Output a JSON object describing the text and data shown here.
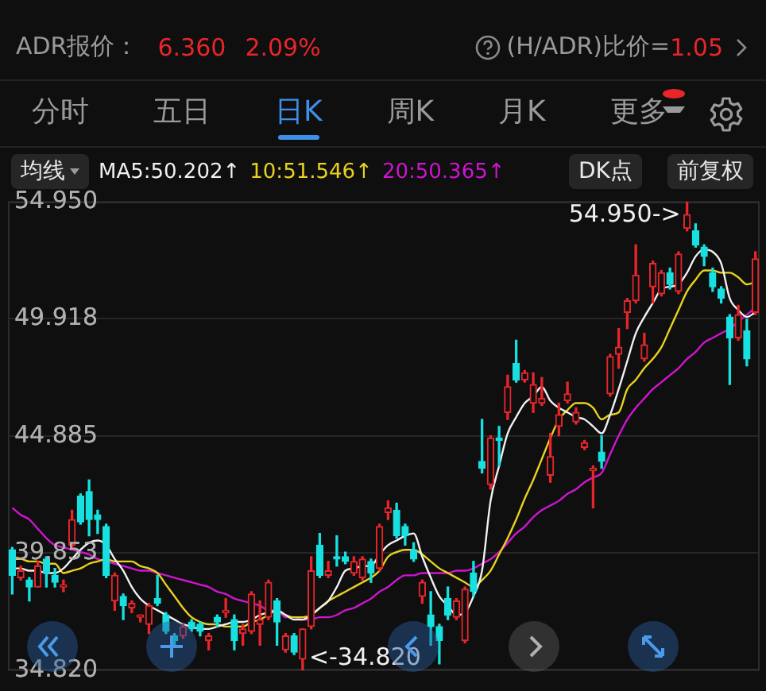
{
  "chart_data": {
    "type": "candlestick",
    "categories": [
      null,
      null,
      null,
      null,
      null,
      null,
      null,
      null,
      null,
      null,
      null,
      null,
      null,
      null,
      null,
      null,
      null,
      null,
      null,
      null,
      null,
      null,
      null,
      null,
      null,
      null,
      null,
      null,
      null,
      null,
      null,
      null,
      null,
      null,
      null,
      null,
      null,
      null,
      null,
      null,
      null,
      null,
      null,
      null,
      null,
      null,
      null,
      null,
      null,
      null,
      null,
      null,
      null,
      null,
      null,
      null,
      null,
      null,
      null,
      null,
      null,
      null,
      null,
      null,
      null,
      null,
      null,
      null,
      null,
      null,
      null,
      null,
      null,
      null,
      null,
      null,
      null,
      null,
      null,
      null,
      null,
      null,
      null,
      null,
      null,
      null,
      null,
      null
    ],
    "ohlc": [
      [
        40.0,
        40.1,
        38.1,
        38.9
      ],
      [
        38.8,
        39.3,
        38.7,
        39.1
      ],
      [
        38.7,
        38.8,
        37.8,
        38.4
      ],
      [
        38.4,
        39.5,
        38.4,
        39.3
      ],
      [
        39.6,
        39.7,
        38.4,
        39.0
      ],
      [
        38.9,
        39.2,
        38.4,
        38.6
      ],
      [
        38.4,
        38.7,
        38.2,
        38.5
      ],
      [
        40.2,
        41.7,
        40.0,
        41.3
      ],
      [
        42.3,
        42.4,
        41.1,
        41.2
      ],
      [
        42.5,
        43.0,
        40.6,
        41.3
      ],
      [
        41.5,
        41.7,
        40.7,
        41.3
      ],
      [
        41.0,
        41.1,
        38.8,
        38.9
      ],
      [
        37.8,
        39.0,
        37.4,
        38.9
      ],
      [
        38.0,
        38.1,
        37.0,
        37.6
      ],
      [
        37.5,
        37.8,
        37.3,
        37.7
      ],
      [
        37.1,
        37.2,
        36.9,
        37.2
      ],
      [
        36.8,
        37.7,
        36.4,
        37.6
      ],
      [
        37.9,
        38.9,
        37.6,
        37.7
      ],
      [
        37.2,
        37.3,
        36.4,
        36.5
      ],
      [
        36.3,
        36.4,
        35.9,
        36.1
      ],
      [
        36.3,
        36.8,
        36.2,
        36.7
      ],
      [
        36.9,
        37.0,
        36.5,
        36.6
      ],
      [
        36.8,
        36.9,
        36.3,
        36.5
      ],
      [
        36.1,
        36.4,
        35.7,
        36.3
      ],
      [
        37.1,
        37.2,
        36.7,
        36.9
      ],
      [
        37.3,
        37.9,
        37.1,
        37.4
      ],
      [
        37.0,
        37.2,
        35.7,
        36.1
      ],
      [
        36.4,
        36.8,
        35.9,
        36.6
      ],
      [
        36.5,
        38.2,
        36.4,
        38.1
      ],
      [
        36.8,
        37.8,
        35.9,
        37.0
      ],
      [
        37.1,
        38.7,
        37.0,
        38.6
      ],
      [
        37.8,
        37.9,
        35.9,
        36.9
      ],
      [
        35.7,
        36.4,
        35.6,
        36.3
      ],
      [
        36.3,
        36.4,
        35.5,
        35.6
      ],
      [
        35.3,
        36.6,
        34.82,
        36.6
      ],
      [
        36.7,
        39.7,
        36.6,
        39.1
      ],
      [
        40.2,
        40.7,
        38.8,
        38.9
      ],
      [
        38.9,
        39.5,
        38.8,
        39.1
      ],
      [
        39.7,
        40.6,
        39.3,
        39.6
      ],
      [
        39.7,
        39.9,
        39.4,
        39.5
      ],
      [
        39.0,
        39.7,
        38.9,
        39.5
      ],
      [
        38.8,
        39.7,
        38.7,
        39.6
      ],
      [
        39.5,
        39.6,
        38.6,
        39.0
      ],
      [
        39.2,
        41.1,
        39.1,
        41.0
      ],
      [
        41.6,
        42.1,
        41.3,
        41.8
      ],
      [
        41.7,
        42.0,
        40.5,
        40.6
      ],
      [
        41.0,
        41.1,
        40.2,
        40.6
      ],
      [
        40.0,
        40.3,
        39.5,
        39.6
      ],
      [
        38.0,
        38.7,
        37.7,
        38.6
      ],
      [
        37.2,
        38.2,
        35.9,
        36.7
      ],
      [
        36.7,
        36.8,
        35.1,
        36.1
      ],
      [
        37.9,
        38.4,
        37.0,
        37.2
      ],
      [
        37.1,
        37.9,
        37.0,
        37.8
      ],
      [
        36.1,
        38.4,
        36.0,
        38.3
      ],
      [
        39.0,
        39.5,
        38.0,
        38.2
      ],
      [
        43.8,
        45.6,
        43.3,
        43.5
      ],
      [
        42.8,
        44.9,
        42.6,
        44.8
      ],
      [
        44.8,
        45.3,
        43.6,
        44.7
      ],
      [
        45.9,
        47.5,
        45.6,
        47.0
      ],
      [
        48.0,
        49.0,
        47.2,
        47.3
      ],
      [
        47.3,
        47.7,
        47.2,
        47.6
      ],
      [
        46.3,
        47.6,
        45.9,
        47.1
      ],
      [
        46.3,
        47.4,
        46.2,
        46.5
      ],
      [
        43.2,
        45.0,
        42.9,
        44.0
      ],
      [
        45.3,
        46.3,
        44.9,
        45.8
      ],
      [
        46.4,
        47.2,
        46.3,
        46.7
      ],
      [
        45.5,
        46.1,
        45.4,
        45.9
      ],
      [
        44.4,
        44.7,
        44.3,
        44.6
      ],
      [
        43.4,
        43.6,
        41.8,
        43.5
      ],
      [
        44.2,
        44.9,
        43.5,
        43.8
      ],
      [
        46.7,
        48.4,
        46.6,
        48.3
      ],
      [
        48.4,
        49.5,
        47.8,
        48.7
      ],
      [
        50.2,
        50.8,
        49.5,
        50.7
      ],
      [
        50.7,
        53.1,
        50.6,
        51.8
      ],
      [
        48.2,
        49.3,
        48.1,
        48.8
      ],
      [
        51.3,
        52.4,
        50.6,
        52.3
      ],
      [
        51.0,
        52.0,
        50.9,
        51.9
      ],
      [
        51.9,
        52.1,
        51.2,
        51.4
      ],
      [
        51.1,
        52.8,
        51.0,
        52.7
      ],
      [
        53.8,
        54.95,
        53.7,
        54.4
      ],
      [
        53.7,
        54.0,
        53.0,
        53.1
      ],
      [
        53.0,
        53.1,
        52.2,
        52.6
      ],
      [
        51.9,
        52.1,
        51.1,
        51.3
      ],
      [
        51.2,
        51.3,
        50.6,
        50.8
      ],
      [
        50.0,
        50.1,
        47.1,
        49.1
      ],
      [
        49.1,
        50.5,
        49.0,
        50.1
      ],
      [
        49.4,
        49.9,
        47.9,
        48.2
      ],
      [
        50.2,
        52.8,
        50.1,
        52.5
      ]
    ],
    "colors": [
      "#18e0e0",
      "#e8262a",
      "#18e0e0",
      "#e8262a",
      "#18e0e0",
      "#18e0e0",
      "#e8262a",
      "#e8262a",
      "#18e0e0",
      "#18e0e0",
      "#18e0e0",
      "#18e0e0",
      "#e8262a",
      "#18e0e0",
      "#e8262a",
      "#e8262a",
      "#e8262a",
      "#18e0e0",
      "#18e0e0",
      "#18e0e0",
      "#e8262a",
      "#18e0e0",
      "#18e0e0",
      "#e8262a",
      "#18e0e0",
      "#e8262a",
      "#18e0e0",
      "#e8262a",
      "#e8262a",
      "#e8262a",
      "#e8262a",
      "#18e0e0",
      "#e8262a",
      "#18e0e0",
      "#e8262a",
      "#e8262a",
      "#18e0e0",
      "#e8262a",
      "#18e0e0",
      "#18e0e0",
      "#e8262a",
      "#e8262a",
      "#18e0e0",
      "#e8262a",
      "#e8262a",
      "#18e0e0",
      "#18e0e0",
      "#18e0e0",
      "#e8262a",
      "#18e0e0",
      "#18e0e0",
      "#18e0e0",
      "#e8262a",
      "#e8262a",
      "#18e0e0",
      "#18e0e0",
      "#e8262a",
      "#18e0e0",
      "#e8262a",
      "#18e0e0",
      "#e8262a",
      "#e8262a",
      "#e8262a",
      "#e8262a",
      "#e8262a",
      "#e8262a",
      "#e8262a",
      "#e8262a",
      "#e8262a",
      "#18e0e0",
      "#e8262a",
      "#e8262a",
      "#e8262a",
      "#e8262a",
      "#e8262a",
      "#e8262a",
      "#e8262a",
      "#18e0e0",
      "#e8262a",
      "#e8262a",
      "#18e0e0",
      "#18e0e0",
      "#18e0e0",
      "#18e0e0",
      "#18e0e0",
      "#e8262a",
      "#18e0e0",
      "#e8262a"
    ],
    "series": [
      {
        "name": "MA5:50.202↑",
        "type": "line",
        "color": "#f0f0f0",
        "values": [
          39.2,
          39.2,
          39.1,
          39.1,
          39.0,
          39.0,
          39.2,
          39.6,
          40.0,
          40.3,
          40.4,
          40.2,
          39.6,
          39.1,
          38.4,
          37.9,
          37.6,
          37.4,
          37.2,
          37.0,
          36.8,
          36.7,
          36.6,
          36.6,
          36.7,
          36.8,
          36.9,
          36.9,
          37.0,
          37.2,
          37.3,
          37.4,
          37.2,
          37.0,
          37.0,
          37.2,
          37.5,
          37.8,
          38.4,
          39.1,
          39.2,
          39.3,
          39.3,
          39.8,
          40.2,
          40.4,
          40.6,
          40.7,
          39.7,
          38.8,
          38.0,
          37.6,
          37.2,
          37.3,
          38.0,
          39.1,
          42.1,
          43.6,
          45.0,
          45.7,
          46.3,
          46.6,
          47.0,
          46.4,
          46.1,
          45.9,
          45.7,
          45.6,
          45.3,
          45.0,
          45.8,
          46.9,
          48.1,
          49.3,
          50.0,
          50.6,
          51.2,
          51.3,
          51.4,
          51.9,
          52.6,
          52.9,
          52.8,
          52.3,
          50.8,
          50.3,
          50.0,
          50.2
        ]
      },
      {
        "name": "10:51.546↑",
        "type": "line",
        "color": "#e8d21e",
        "values": [
          39.6,
          39.6,
          39.5,
          39.5,
          39.4,
          39.4,
          39.0,
          39.1,
          39.2,
          39.4,
          39.5,
          39.6,
          39.5,
          39.5,
          39.5,
          39.3,
          39.2,
          39.0,
          38.5,
          38.0,
          37.5,
          37.1,
          36.9,
          36.8,
          36.8,
          36.7,
          36.7,
          36.7,
          36.9,
          37.0,
          37.2,
          37.4,
          37.2,
          37.1,
          37.1,
          37.2,
          37.5,
          37.8,
          38.0,
          38.2,
          38.4,
          38.6,
          38.8,
          39.1,
          39.7,
          39.9,
          40.0,
          40.0,
          39.8,
          39.5,
          39.2,
          39.0,
          38.8,
          38.6,
          38.4,
          38.7,
          39.1,
          39.8,
          40.5,
          41.3,
          42.2,
          43.0,
          43.9,
          44.8,
          45.6,
          46.0,
          46.3,
          46.3,
          46.1,
          45.6,
          45.8,
          45.9,
          46.9,
          47.3,
          47.8,
          48.2,
          48.7,
          49.5,
          50.3,
          51.1,
          51.6,
          52.0,
          52.0,
          51.9,
          51.9,
          51.7,
          51.4,
          51.5
        ]
      },
      {
        "name": "20:50.365↑",
        "type": "line",
        "color": "#d014d0",
        "values": [
          41.8,
          41.5,
          41.3,
          40.9,
          40.5,
          40.2,
          40.1,
          40.0,
          39.9,
          39.8,
          39.6,
          39.5,
          39.4,
          39.3,
          39.2,
          39.1,
          39.1,
          39.0,
          38.9,
          38.8,
          38.7,
          38.6,
          38.5,
          38.4,
          38.2,
          38.1,
          37.9,
          37.8,
          37.7,
          37.6,
          37.4,
          37.4,
          37.1,
          37.1,
          37.0,
          37.0,
          37.1,
          37.1,
          37.2,
          37.4,
          37.5,
          37.7,
          37.9,
          38.2,
          38.4,
          38.7,
          38.9,
          38.9,
          39.0,
          39.0,
          39.0,
          39.0,
          39.1,
          39.1,
          39.2,
          39.4,
          39.6,
          39.9,
          40.3,
          40.7,
          41.0,
          41.4,
          41.7,
          41.9,
          42.1,
          42.4,
          42.6,
          42.9,
          43.1,
          43.3,
          44.1,
          44.9,
          45.6,
          46.1,
          46.5,
          46.9,
          47.2,
          47.5,
          47.8,
          48.2,
          48.5,
          48.9,
          49.1,
          49.3,
          49.5,
          49.8,
          50.1,
          50.4
        ]
      }
    ],
    "ylim": [
      34.82,
      54.95
    ],
    "yticks": [
      {
        "value": 34.82,
        "label": "34.820"
      },
      39.853,
      44.885,
      49.918,
      {
        "value": 54.95,
        "label": "54.950"
      }
    ],
    "grid": "y",
    "legend": "top",
    "legend_title": "均线",
    "tick_labels": "y",
    "annotations": [
      "ADR报价：",
      "6.360",
      "2.09%",
      "(H/ADR)比价=",
      "1.05",
      "分时",
      "五日",
      "日K",
      "周K",
      "月K",
      "更多",
      "DK点",
      "前复权",
      "54.950->",
      "<-34.820"
    ]
  }
}
